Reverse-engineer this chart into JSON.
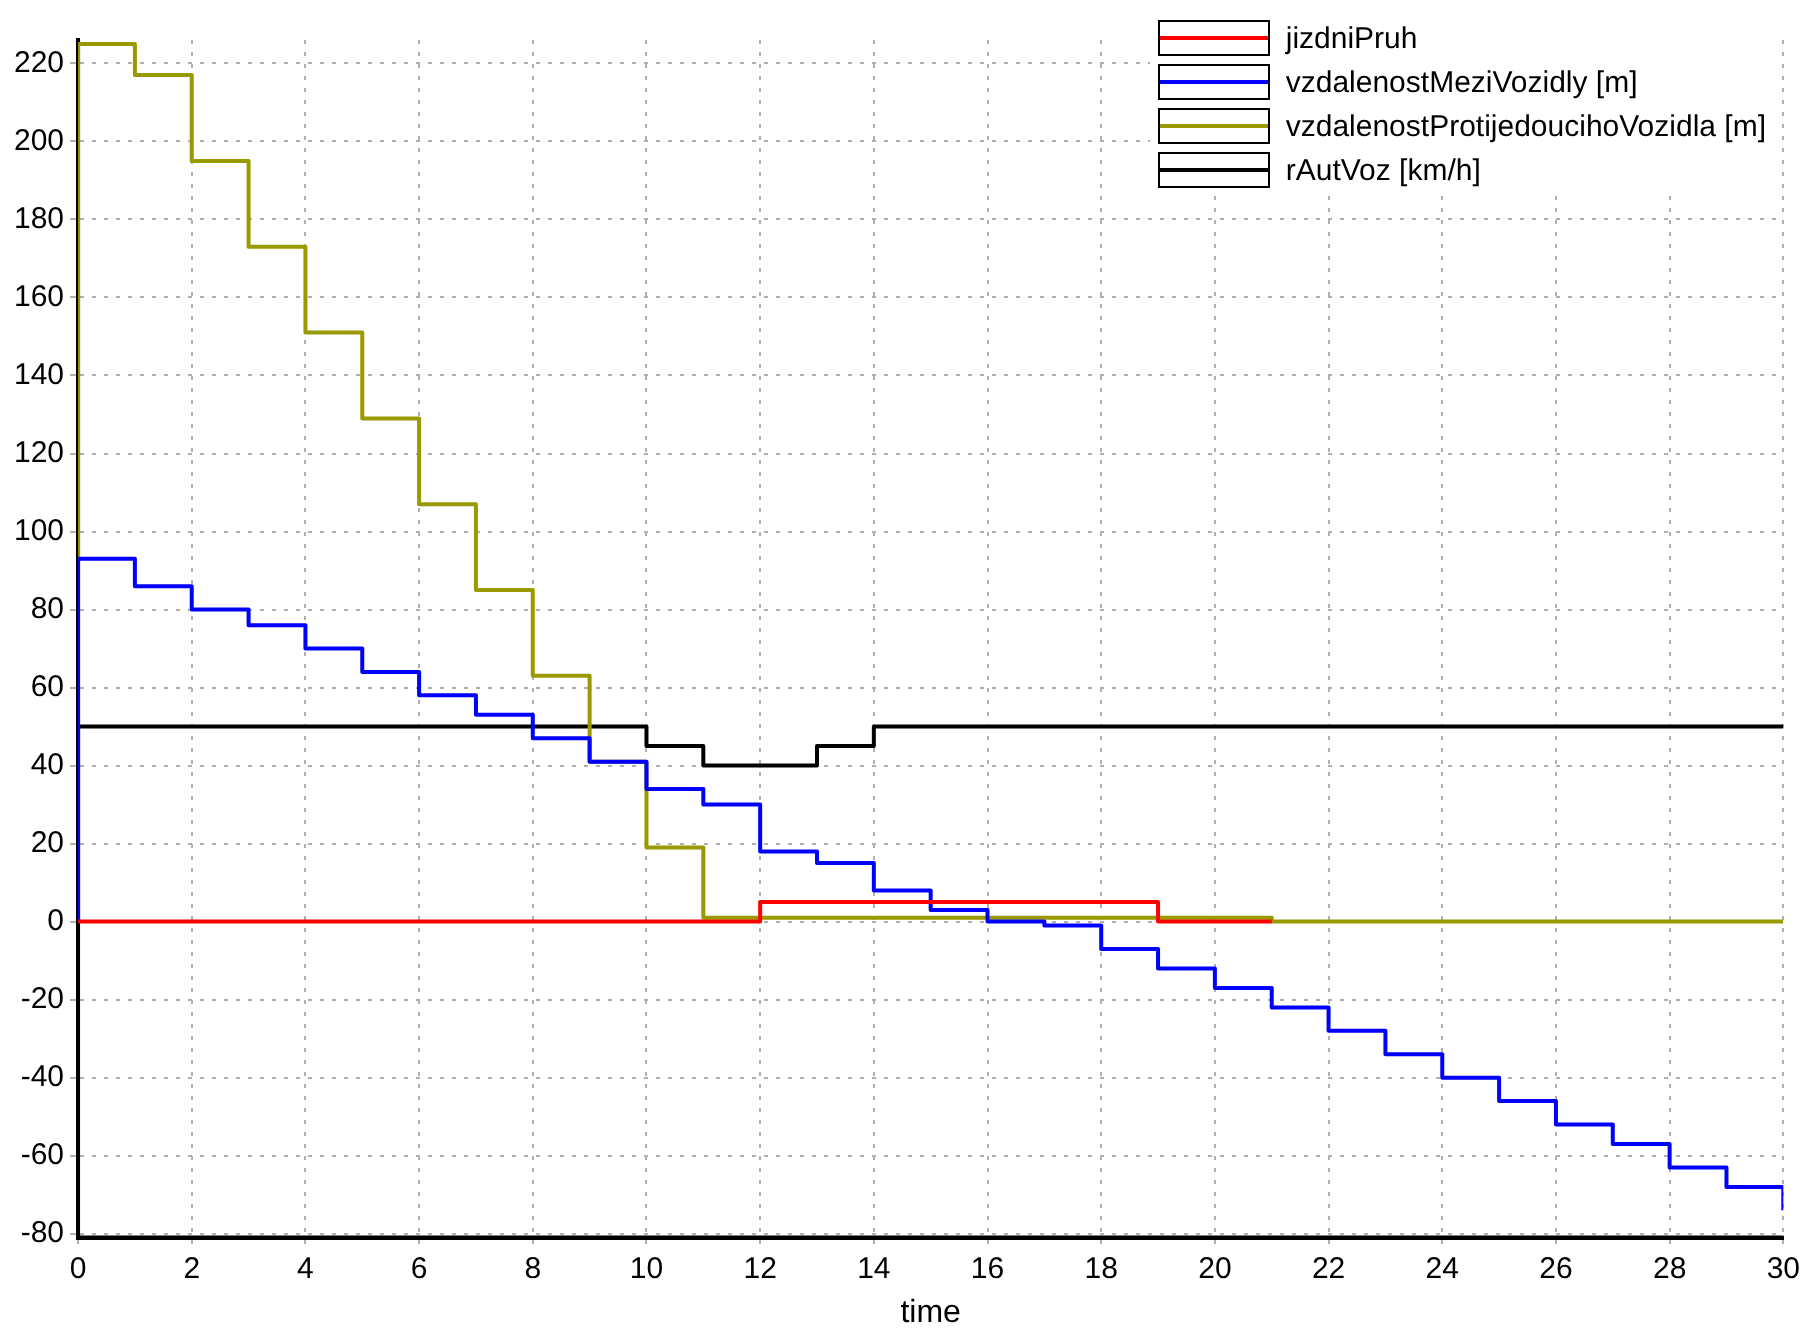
{
  "chart_data": {
    "type": "step",
    "xlabel": "time",
    "xlim": [
      0,
      30
    ],
    "ylim": [
      -81,
      226
    ],
    "xticks": [
      0,
      2,
      4,
      6,
      8,
      10,
      12,
      14,
      16,
      18,
      20,
      22,
      24,
      26,
      28,
      30
    ],
    "yticks": [
      -80,
      -60,
      -40,
      -20,
      0,
      20,
      40,
      60,
      80,
      100,
      120,
      140,
      160,
      180,
      200,
      220
    ],
    "grid": true,
    "legend": "top right",
    "marker": "none",
    "line_style": "solid",
    "series": [
      {
        "name": "jizdniPruh",
        "color": "#ff0000",
        "x": [
          0,
          12,
          19,
          21
        ],
        "values": [
          0,
          5,
          0,
          0
        ]
      },
      {
        "name": "vzdalenostMeziVozidly [m]",
        "color": "#0000ff",
        "x": [
          0,
          0,
          1,
          2,
          3,
          4,
          5,
          6,
          7,
          8,
          9,
          10,
          11,
          12,
          13,
          14,
          15,
          16,
          17,
          18,
          19,
          20,
          21,
          22,
          23,
          24,
          25,
          26,
          27,
          28,
          29,
          30,
          30
        ],
        "values": [
          0,
          93,
          86,
          80,
          76,
          70,
          64,
          58,
          53,
          47,
          41,
          34,
          30,
          18,
          15,
          8,
          3,
          0,
          -1,
          -7,
          -12,
          -17,
          -22,
          -28,
          -34,
          -40,
          -46,
          -52,
          -57,
          -63,
          -68,
          -68,
          -74
        ]
      },
      {
        "name": "vzdalenostProtijedoucihoVozidla [m]",
        "color": "#999900",
        "x": [
          0,
          0,
          1,
          2,
          3,
          4,
          5,
          6,
          7,
          8,
          9,
          10,
          11,
          21,
          30
        ],
        "values": [
          0,
          225,
          217,
          195,
          173,
          151,
          129,
          107,
          85,
          63,
          41,
          19,
          1,
          0,
          0
        ]
      },
      {
        "name": "rAutVoz [km/h]",
        "color": "#000000",
        "x": [
          0,
          0,
          10,
          11,
          13,
          14,
          30
        ],
        "values": [
          0,
          50,
          45,
          40,
          45,
          50,
          50
        ]
      }
    ]
  }
}
